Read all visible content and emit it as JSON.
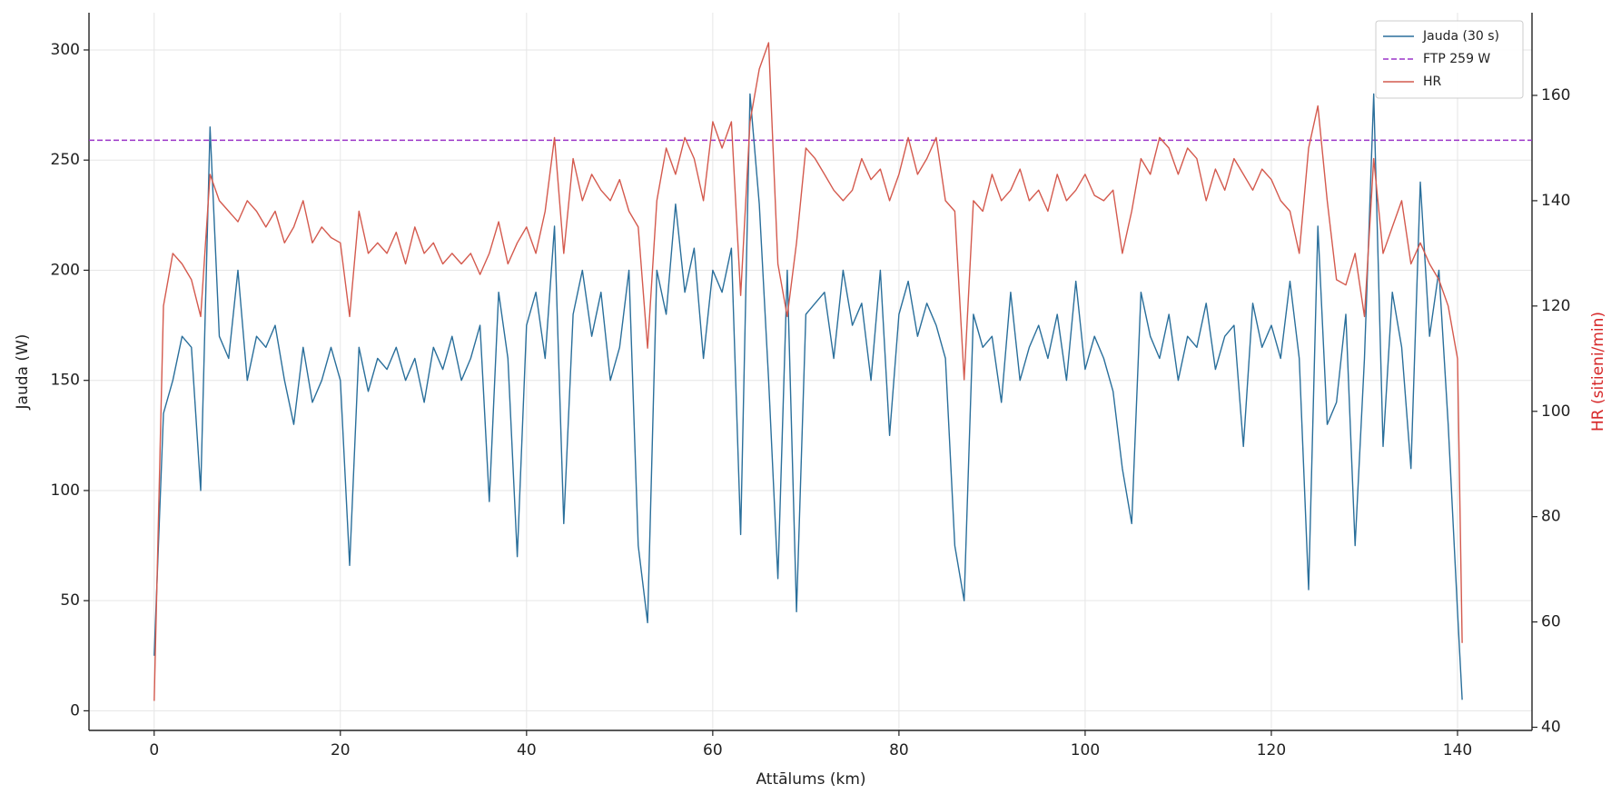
{
  "chart_data": {
    "type": "line",
    "xlabel": "Attālums (km)",
    "ylabel": "Jauda (W)",
    "y2label": "HR (sitieni/min)",
    "y2label_color": "#d62728",
    "xlim": [
      -7,
      148
    ],
    "ylim": [
      -8.9,
      316.9
    ],
    "y2lim": [
      39.4,
      175.7
    ],
    "xticks": [
      0,
      20,
      40,
      60,
      80,
      100,
      120,
      140
    ],
    "yticks": [
      0,
      50,
      100,
      150,
      200,
      250,
      300
    ],
    "y2ticks": [
      40,
      60,
      80,
      100,
      120,
      140,
      160
    ],
    "grid": true,
    "legend": "upper right",
    "hlines": [
      {
        "name": "FTP 259 W",
        "value": 259,
        "color": "#9b35c8",
        "dash": true
      }
    ],
    "x": [
      0,
      1,
      2,
      3,
      4,
      5,
      6,
      7,
      8,
      9,
      10,
      11,
      12,
      13,
      14,
      15,
      16,
      17,
      18,
      19,
      20,
      21,
      22,
      23,
      24,
      25,
      26,
      27,
      28,
      29,
      30,
      31,
      32,
      33,
      34,
      35,
      36,
      37,
      38,
      39,
      40,
      41,
      42,
      43,
      44,
      45,
      46,
      47,
      48,
      49,
      50,
      51,
      52,
      53,
      54,
      55,
      56,
      57,
      58,
      59,
      60,
      61,
      62,
      63,
      64,
      65,
      66,
      67,
      68,
      69,
      70,
      71,
      72,
      73,
      74,
      75,
      76,
      77,
      78,
      79,
      80,
      81,
      82,
      83,
      84,
      85,
      86,
      87,
      88,
      89,
      90,
      91,
      92,
      93,
      94,
      95,
      96,
      97,
      98,
      99,
      100,
      101,
      102,
      103,
      104,
      105,
      106,
      107,
      108,
      109,
      110,
      111,
      112,
      113,
      114,
      115,
      116,
      117,
      118,
      119,
      120,
      121,
      122,
      123,
      124,
      125,
      126,
      127,
      128,
      129,
      130,
      131,
      132,
      133,
      134,
      135,
      136,
      137,
      138,
      139,
      140,
      140.5
    ],
    "series": [
      {
        "name": "Jauda (30 s)",
        "color": "#2a6f9b",
        "values": [
          25,
          135,
          150,
          170,
          165,
          100,
          265,
          170,
          160,
          200,
          150,
          170,
          165,
          175,
          150,
          130,
          165,
          140,
          150,
          165,
          150,
          66,
          165,
          145,
          160,
          155,
          165,
          150,
          160,
          140,
          165,
          155,
          170,
          150,
          160,
          175,
          95,
          190,
          160,
          70,
          175,
          190,
          160,
          220,
          85,
          180,
          200,
          170,
          190,
          150,
          165,
          200,
          75,
          40,
          200,
          180,
          230,
          190,
          210,
          160,
          200,
          190,
          210,
          80,
          280,
          230,
          150,
          60,
          200,
          45,
          180,
          185,
          190,
          160,
          200,
          175,
          185,
          150,
          200,
          125,
          180,
          195,
          170,
          185,
          175,
          160,
          75,
          50,
          180,
          165,
          170,
          140,
          190,
          150,
          165,
          175,
          160,
          180,
          150,
          195,
          155,
          170,
          160,
          145,
          110,
          85,
          190,
          170,
          160,
          180,
          150,
          170,
          165,
          185,
          155,
          170,
          175,
          120,
          185,
          165,
          175,
          160,
          195,
          160,
          55,
          220,
          130,
          140,
          180,
          75,
          160,
          280,
          120,
          190,
          165,
          110,
          240,
          170,
          200,
          130,
          45,
          5
        ]
      },
      {
        "name": "HR",
        "color": "#d45a4e",
        "axis": "y2",
        "values": [
          45,
          120,
          130,
          128,
          125,
          118,
          145,
          140,
          138,
          136,
          140,
          138,
          135,
          138,
          132,
          135,
          140,
          132,
          135,
          133,
          132,
          118,
          138,
          130,
          132,
          130,
          134,
          128,
          135,
          130,
          132,
          128,
          130,
          128,
          130,
          126,
          130,
          136,
          128,
          132,
          135,
          130,
          138,
          152,
          130,
          148,
          140,
          145,
          142,
          140,
          144,
          138,
          135,
          112,
          140,
          150,
          145,
          152,
          148,
          140,
          155,
          150,
          155,
          122,
          155,
          165,
          170,
          128,
          118,
          132,
          150,
          148,
          145,
          142,
          140,
          142,
          148,
          144,
          146,
          140,
          145,
          152,
          145,
          148,
          152,
          140,
          138,
          106,
          140,
          138,
          145,
          140,
          142,
          146,
          140,
          142,
          138,
          145,
          140,
          142,
          145,
          141,
          140,
          142,
          130,
          138,
          148,
          145,
          152,
          150,
          145,
          150,
          148,
          140,
          146,
          142,
          148,
          145,
          142,
          146,
          144,
          140,
          138,
          130,
          150,
          158,
          140,
          125,
          124,
          130,
          118,
          148,
          130,
          135,
          140,
          128,
          132,
          128,
          125,
          120,
          110,
          56
        ]
      }
    ]
  }
}
